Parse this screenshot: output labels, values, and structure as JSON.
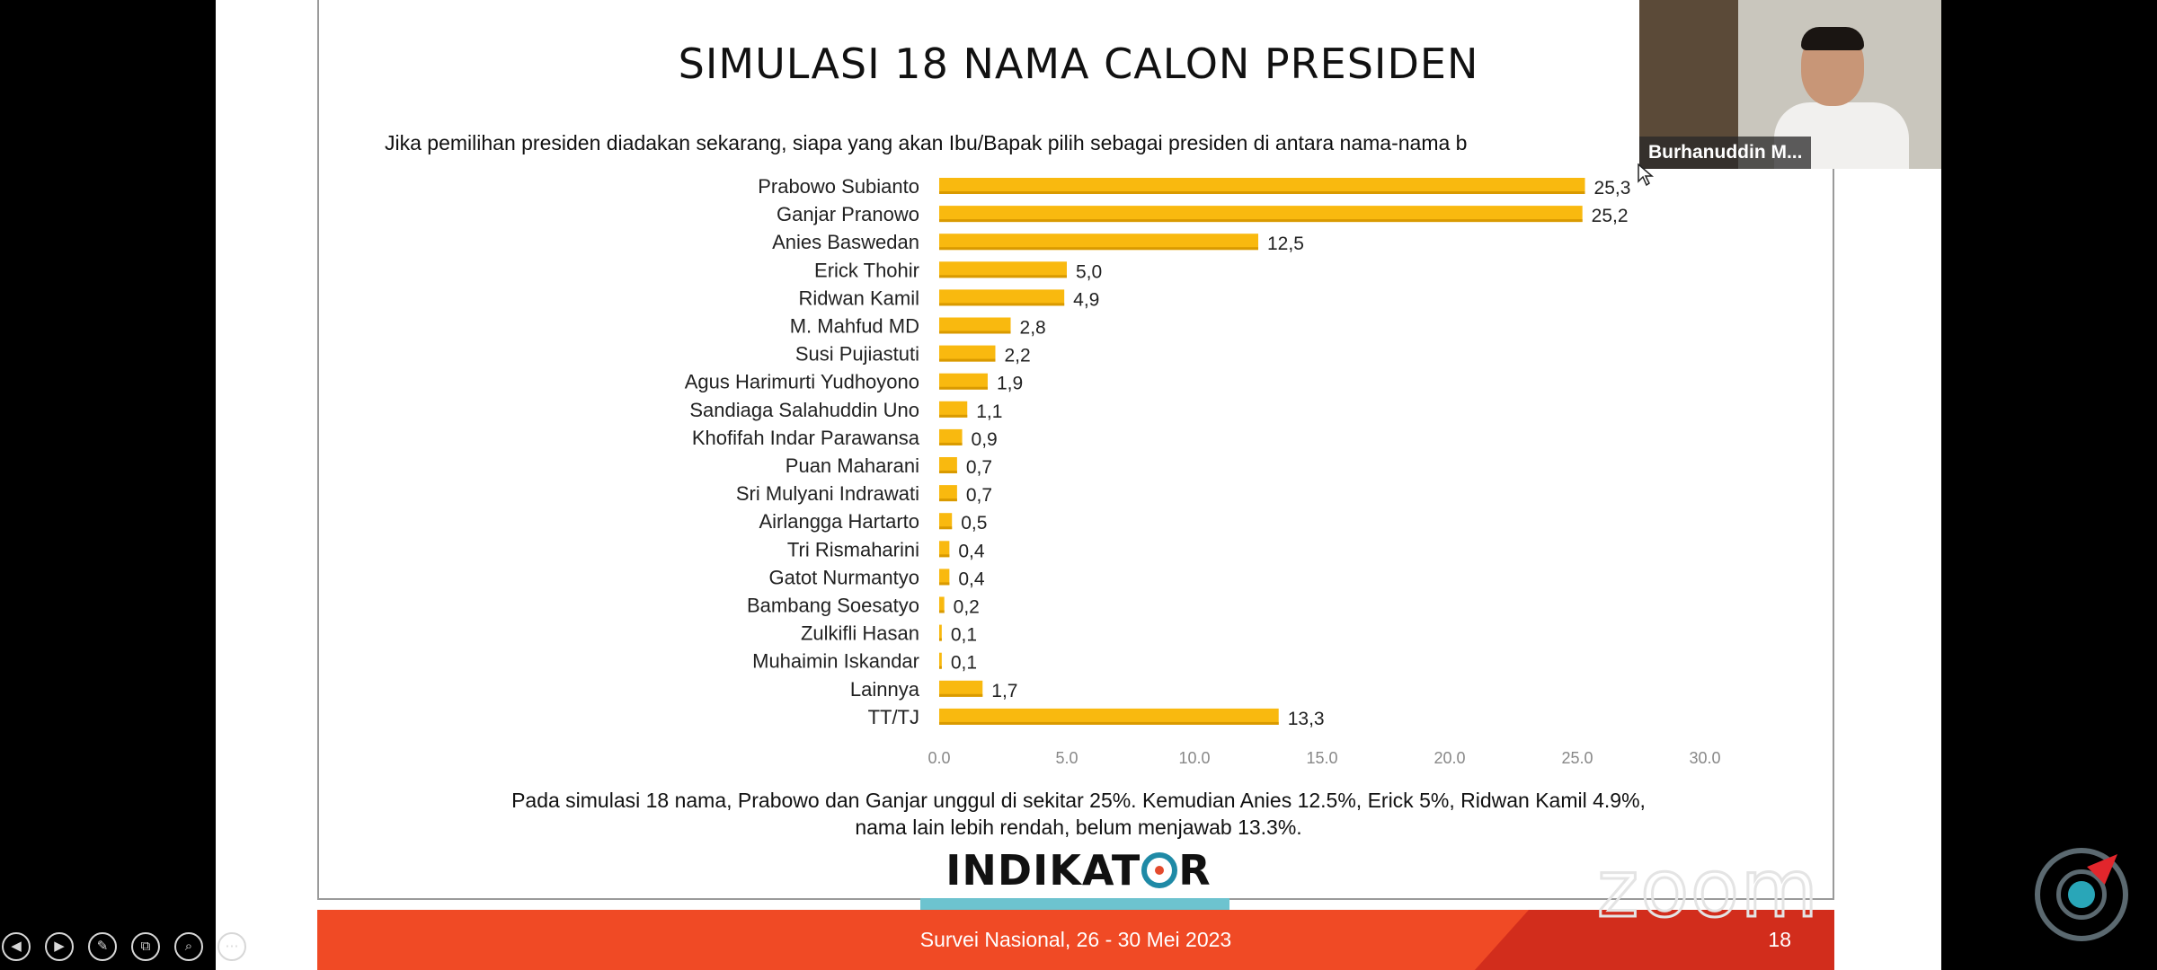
{
  "slide": {
    "title": "SIMULASI 18 NAMA CALON PRESIDEN",
    "question": "Jika pemilihan presiden diadakan sekarang, siapa yang akan Ibu/Bapak pilih sebagai presiden di antara nama-nama b",
    "conclusion_line1": "Pada simulasi 18 nama, Prabowo dan Ganjar unggul di sekitar 25%. Kemudian Anies 12.5%, Erick 5%, Ridwan Kamil 4.9%,",
    "conclusion_line2": "nama lain lebih rendah, belum menjawab 13.3%.",
    "logo_text_before": "INDIKAT",
    "logo_text_after": "R",
    "footer_text": "Survei Nasional, 26 - 30 Mei 2023",
    "slide_number": "18"
  },
  "video": {
    "participant_name": "Burhanuddin M..."
  },
  "watermark": "zoom",
  "controls": [
    "◀",
    "▶",
    "✎",
    "⧉",
    "⌕",
    "⋯"
  ],
  "colors": {
    "bar": "#f9b90f",
    "footer": "#f04a25",
    "logo_bar": "#6dc3cf"
  },
  "chart_data": {
    "type": "bar",
    "orientation": "horizontal",
    "categories": [
      "Prabowo Subianto",
      "Ganjar Pranowo",
      "Anies Baswedan",
      "Erick Thohir",
      "Ridwan Kamil",
      "M. Mahfud MD",
      "Susi Pujiastuti",
      "Agus Harimurti Yudhoyono",
      "Sandiaga Salahuddin Uno",
      "Khofifah Indar Parawansa",
      "Puan Maharani",
      "Sri Mulyani Indrawati",
      "Airlangga Hartarto",
      "Tri Rismaharini",
      "Gatot Nurmantyo",
      "Bambang Soesatyo",
      "Zulkifli Hasan",
      "Muhaimin Iskandar",
      "Lainnya",
      "TT/TJ"
    ],
    "values": [
      25.3,
      25.2,
      12.5,
      5.0,
      4.9,
      2.8,
      2.2,
      1.9,
      1.1,
      0.9,
      0.7,
      0.7,
      0.5,
      0.4,
      0.4,
      0.2,
      0.1,
      0.1,
      1.7,
      13.3
    ],
    "value_labels": [
      "25,3",
      "25,2",
      "12,5",
      "5,0",
      "4,9",
      "2,8",
      "2,2",
      "1,9",
      "1,1",
      "0,9",
      "0,7",
      "0,7",
      "0,5",
      "0,4",
      "0,4",
      "0,2",
      "0,1",
      "0,1",
      "1,7",
      "13,3"
    ],
    "xlim": [
      0,
      30
    ],
    "xticks": [
      "0.0",
      "5.0",
      "10.0",
      "15.0",
      "20.0",
      "25.0",
      "30.0"
    ],
    "grid": false,
    "legend": "none"
  }
}
